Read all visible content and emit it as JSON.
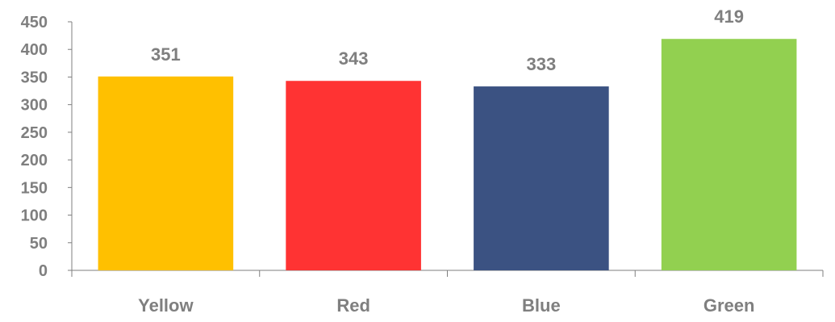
{
  "chart_data": {
    "type": "bar",
    "categories": [
      "Yellow",
      "Red",
      "Blue",
      "Green"
    ],
    "values": [
      351,
      343,
      333,
      419
    ],
    "colors": [
      "#FFC000",
      "#FF3333",
      "#3B5282",
      "#92D050"
    ],
    "ylim": [
      0,
      450
    ],
    "yticks": [
      0,
      50,
      100,
      150,
      200,
      250,
      300,
      350,
      400,
      450
    ],
    "title": "",
    "xlabel": "",
    "ylabel": "",
    "grid": false,
    "legend": "none",
    "data_labels": true,
    "text_color": "#7F7F7F",
    "axis_color": "#7F7F7F"
  }
}
